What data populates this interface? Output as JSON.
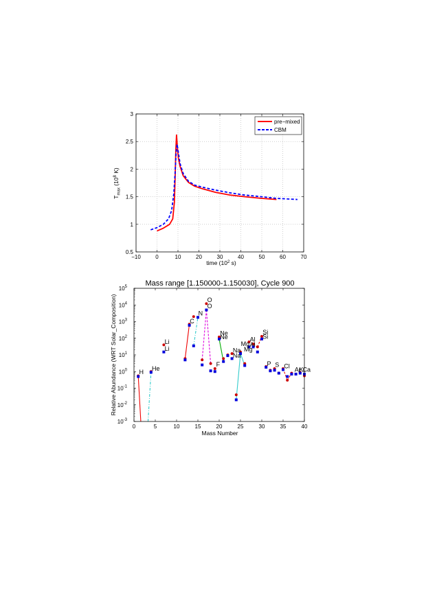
{
  "chart_data": [
    {
      "type": "line",
      "title": "",
      "xlabel": "time (10",
      "xlabel_sup": "2",
      "xlabel_end": " s)",
      "ylabel": "T",
      "ylabel_sub": "max",
      "ylabel_mid": " (10",
      "ylabel_sup": "8",
      "ylabel_end": " K)",
      "xlim": [
        -10,
        70
      ],
      "ylim": [
        0.5,
        3
      ],
      "xticks": [
        "−10",
        "0",
        "10",
        "20",
        "30",
        "40",
        "50",
        "60",
        "70"
      ],
      "yticks": [
        "0.5",
        "1",
        "1.5",
        "2",
        "2.5",
        "3"
      ],
      "grid": true,
      "legend_position": "top-right",
      "series": [
        {
          "name": "pre−mixed",
          "color": "#ff0000",
          "dash": "solid",
          "x": [
            0,
            3,
            6,
            7.5,
            8.3,
            8.7,
            9.0,
            9.3,
            9.7,
            10.2,
            11,
            12.5,
            15,
            18,
            22,
            28,
            35,
            42,
            50,
            57
          ],
          "y": [
            0.88,
            0.93,
            1.0,
            1.1,
            1.4,
            1.9,
            2.35,
            2.62,
            2.4,
            2.2,
            2.05,
            1.88,
            1.76,
            1.69,
            1.64,
            1.58,
            1.53,
            1.5,
            1.47,
            1.45
          ]
        },
        {
          "name": "CBM",
          "color": "#0000ff",
          "dash": "dashed",
          "x": [
            -3,
            0,
            3,
            5.5,
            7,
            8,
            8.6,
            9.1,
            9.6,
            10.2,
            11,
            12.5,
            15,
            18,
            22,
            28,
            35,
            42,
            50,
            57,
            67
          ],
          "y": [
            0.9,
            0.94,
            1.0,
            1.1,
            1.25,
            1.55,
            1.9,
            2.3,
            2.45,
            2.3,
            2.1,
            1.92,
            1.78,
            1.71,
            1.67,
            1.62,
            1.57,
            1.53,
            1.5,
            1.47,
            1.45
          ]
        }
      ]
    },
    {
      "type": "scatter",
      "title": "Mass range [1.150000-1.150030], Cycle 900",
      "xlabel": "Mass Number",
      "ylabel": "Relative Abundance (WRT Solar_Composition)",
      "xlim": [
        0,
        40
      ],
      "ylim_log10": [
        -3,
        5
      ],
      "xticks": [
        "0",
        "5",
        "10",
        "15",
        "20",
        "25",
        "30",
        "35",
        "40"
      ],
      "yticks": [
        {
          "base": "10",
          "exp": "-3"
        },
        {
          "base": "10",
          "exp": "-2"
        },
        {
          "base": "10",
          "exp": "-1"
        },
        {
          "base": "10",
          "exp": "0"
        },
        {
          "base": "10",
          "exp": "1"
        },
        {
          "base": "10",
          "exp": "2"
        },
        {
          "base": "10",
          "exp": "3"
        },
        {
          "base": "10",
          "exp": "4"
        },
        {
          "base": "10",
          "exp": "5"
        }
      ],
      "grid": false,
      "series": [
        {
          "name": "",
          "color": "#cc0000",
          "marker": "circle",
          "points": [
            [
              1,
              0.55
            ],
            [
              3,
              0.001
            ],
            [
              4,
              1.0
            ],
            [
              7,
              40
            ],
            [
              12,
              6
            ],
            [
              13,
              700
            ],
            [
              14,
              2000
            ],
            [
              16,
              5
            ],
            [
              17,
              12000
            ],
            [
              18,
              3
            ],
            [
              19,
              1.5
            ],
            [
              20,
              120
            ],
            [
              21,
              6
            ],
            [
              22,
              10
            ],
            [
              23,
              12
            ],
            [
              24,
              0.04
            ],
            [
              25,
              15
            ],
            [
              26,
              3
            ],
            [
              27,
              60
            ],
            [
              28,
              45
            ],
            [
              29,
              30
            ],
            [
              30,
              130
            ],
            [
              31,
              2
            ],
            [
              32,
              1.2
            ],
            [
              33,
              1.5
            ],
            [
              34,
              0.8
            ],
            [
              35,
              1.5
            ],
            [
              36,
              0.3
            ],
            [
              37,
              0.8
            ],
            [
              38,
              0.7
            ],
            [
              39,
              0.9
            ],
            [
              40,
              0.55
            ]
          ]
        },
        {
          "name": "",
          "color": "#0000dd",
          "marker": "square",
          "points": [
            [
              1,
              0.5
            ],
            [
              3,
              0.001
            ],
            [
              4,
              0.9
            ],
            [
              7,
              15
            ],
            [
              12,
              5
            ],
            [
              13,
              600
            ],
            [
              14,
              35
            ],
            [
              15,
              1800
            ],
            [
              16,
              2.5
            ],
            [
              17,
              5000
            ],
            [
              18,
              1.1
            ],
            [
              19,
              1.0
            ],
            [
              20,
              90
            ],
            [
              21,
              4
            ],
            [
              22,
              9
            ],
            [
              23,
              6
            ],
            [
              24,
              0.02
            ],
            [
              25,
              12
            ],
            [
              26,
              2.3
            ],
            [
              27,
              30
            ],
            [
              28,
              30
            ],
            [
              29,
              15
            ],
            [
              30,
              90
            ],
            [
              31,
              1.8
            ],
            [
              32,
              1.1
            ],
            [
              33,
              1.2
            ],
            [
              34,
              0.8
            ],
            [
              35,
              1.3
            ],
            [
              36,
              0.5
            ],
            [
              37,
              0.7
            ],
            [
              38,
              0.7
            ],
            [
              39,
              0.8
            ],
            [
              40,
              0.7
            ]
          ]
        }
      ],
      "connectors": [
        {
          "color": "#ee0000",
          "dash": "solid",
          "from": [
            1,
            0.55
          ],
          "to": [
            1.6,
            0.001
          ]
        },
        {
          "color": "#33cccc",
          "dash": "dashdot",
          "from": [
            3.3,
            0.001
          ],
          "to": [
            4,
            0.9
          ]
        },
        {
          "color": "#ee0000",
          "dash": "solid",
          "from": [
            12,
            6
          ],
          "to": [
            13,
            700
          ]
        },
        {
          "color": "#33cccc",
          "dash": "dashdot",
          "from": [
            14,
            35
          ],
          "to": [
            15,
            1800
          ]
        },
        {
          "color": "#dd00dd",
          "dash": "dashed",
          "from": [
            16,
            5
          ],
          "to": [
            17,
            5000
          ]
        },
        {
          "color": "#dd00dd",
          "dash": "dashed",
          "from": [
            17,
            5000
          ],
          "to": [
            18,
            3
          ]
        },
        {
          "color": "#00aa00",
          "dash": "solid",
          "from": [
            20,
            90
          ],
          "to": [
            21,
            4
          ]
        },
        {
          "color": "#33cccc",
          "dash": "solid",
          "from": [
            24,
            0.02
          ],
          "to": [
            25,
            12
          ]
        },
        {
          "color": "#33cccc",
          "dash": "solid",
          "from": [
            25,
            12
          ],
          "to": [
            26,
            2.3
          ]
        },
        {
          "color": "#ee0000",
          "dash": "dashed",
          "from": [
            28,
            45
          ],
          "to": [
            29,
            30
          ]
        },
        {
          "color": "#ee0000",
          "dash": "dashed",
          "from": [
            29,
            30
          ],
          "to": [
            30,
            130
          ]
        },
        {
          "color": "#ee0000",
          "dash": "dashed",
          "from": [
            35,
            1.5
          ],
          "to": [
            36,
            0.3
          ]
        },
        {
          "color": "#ee0000",
          "dash": "dashed",
          "from": [
            36,
            0.3
          ],
          "to": [
            37,
            0.8
          ]
        }
      ],
      "labels": [
        {
          "text": "H",
          "x": 1.2,
          "y": 0.7
        },
        {
          "text": "He",
          "x": 4.2,
          "y": 1.1
        },
        {
          "text": "Li",
          "x": 7.2,
          "y": 45
        },
        {
          "text": "Li",
          "x": 7.2,
          "y": 18
        },
        {
          "text": "C",
          "x": 13.1,
          "y": 800
        },
        {
          "text": "N",
          "x": 15.1,
          "y": 2400
        },
        {
          "text": "O",
          "x": 17.2,
          "y": 15000
        },
        {
          "text": "O",
          "x": 17.2,
          "y": 6500
        },
        {
          "text": "F",
          "x": 19.3,
          "y": 2.0
        },
        {
          "text": "Ne",
          "x": 20.2,
          "y": 150
        },
        {
          "text": "Ne",
          "x": 20.2,
          "y": 90
        },
        {
          "text": "Na",
          "x": 23.2,
          "y": 14
        },
        {
          "text": "Na",
          "x": 23.2,
          "y": 7
        },
        {
          "text": "Mg",
          "x": 25.1,
          "y": 35
        },
        {
          "text": "Mg",
          "x": 25.8,
          "y": 16
        },
        {
          "text": "Al",
          "x": 27.2,
          "y": 65
        },
        {
          "text": "Al",
          "x": 27.2,
          "y": 32
        },
        {
          "text": "Si",
          "x": 30.2,
          "y": 170
        },
        {
          "text": "Si",
          "x": 30.2,
          "y": 95
        },
        {
          "text": "P",
          "x": 31.2,
          "y": 2.2
        },
        {
          "text": "S",
          "x": 33.1,
          "y": 1.9
        },
        {
          "text": "Cl",
          "x": 35.2,
          "y": 1.6
        },
        {
          "text": "Ar",
          "x": 37.7,
          "y": 1.0
        },
        {
          "text": "K",
          "x": 38.8,
          "y": 1.0
        },
        {
          "text": "Ca",
          "x": 39.6,
          "y": 1.0
        }
      ]
    }
  ]
}
